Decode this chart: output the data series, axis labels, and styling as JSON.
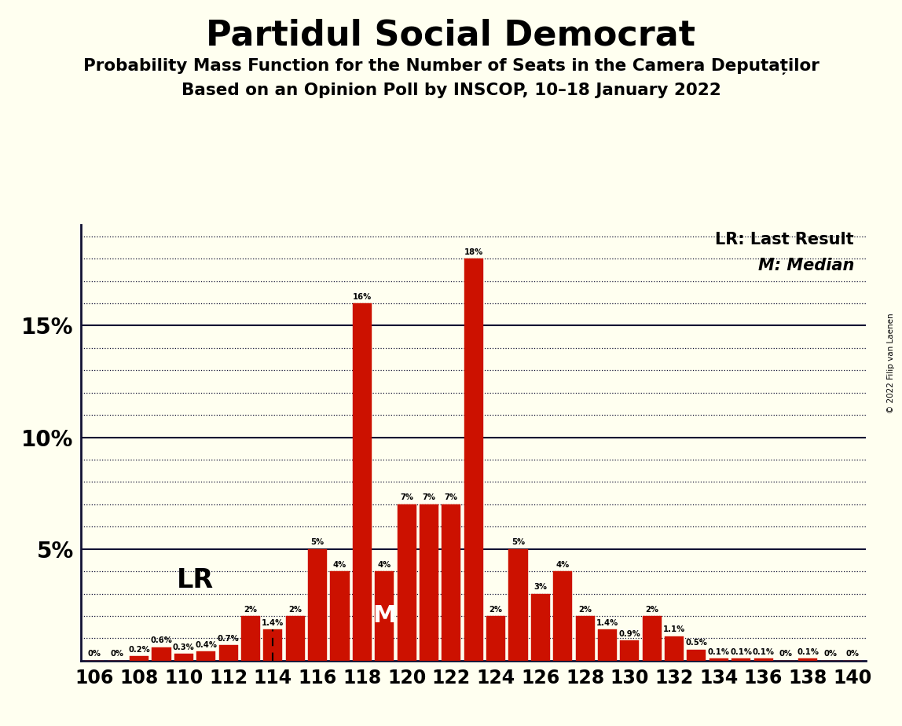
{
  "title": "Partidul Social Democrat",
  "subtitle1": "Probability Mass Function for the Number of Seats in the Camera Deputaților",
  "subtitle2": "Based on an Opinion Poll by INSCOP, 10–18 January 2022",
  "copyright": "© 2022 Filip van Laenen",
  "all_seats": [
    106,
    108,
    110,
    112,
    114,
    116,
    118,
    120,
    122,
    124,
    126,
    128,
    130,
    132,
    134,
    136,
    138,
    140
  ],
  "all_values": [
    0.0,
    0.0,
    0.2,
    0.6,
    0.3,
    0.4,
    0.7,
    2.0,
    1.4,
    2.0,
    5.0,
    4.0,
    16.0,
    4.0,
    7.0,
    7.0,
    7.0,
    18.0,
    2.0,
    5.0,
    3.0,
    4.0,
    2.0,
    1.4,
    0.9,
    2.0,
    1.1,
    0.5,
    0.1,
    0.1,
    0.1,
    0.0,
    0.1,
    0.0,
    0.0
  ],
  "bar_labels": [
    "0%",
    "0%",
    "0.2%",
    "0.6%",
    "0.3%",
    "0.4%",
    "0.7%",
    "2%",
    "1.4%",
    "2%",
    "5%",
    "4%",
    "16%",
    "4%",
    "7%",
    "7%",
    "7%",
    "18%",
    "2%",
    "5%",
    "3%",
    "4%",
    "2%",
    "1.4%",
    "0.9%",
    "2%",
    "1.1%",
    "0.5%",
    "0.1%",
    "0.1%",
    "0.1%",
    "0%",
    "0.1%",
    "0%",
    "0%"
  ],
  "bar_color": "#cc1100",
  "background_color": "#fffff0",
  "text_color": "#000000",
  "lr_seat": 114,
  "median_seat": 119,
  "ylim_max": 19.5,
  "yticks": [
    5,
    10,
    15
  ],
  "ytick_labels": [
    "5%",
    "10%",
    "15%"
  ],
  "legend_lr": "LR: Last Result",
  "legend_m": "M: Median",
  "bar_x_ticks": [
    106,
    108,
    110,
    112,
    114,
    116,
    118,
    120,
    122,
    124,
    126,
    128,
    130,
    132,
    134,
    136,
    138,
    140
  ]
}
